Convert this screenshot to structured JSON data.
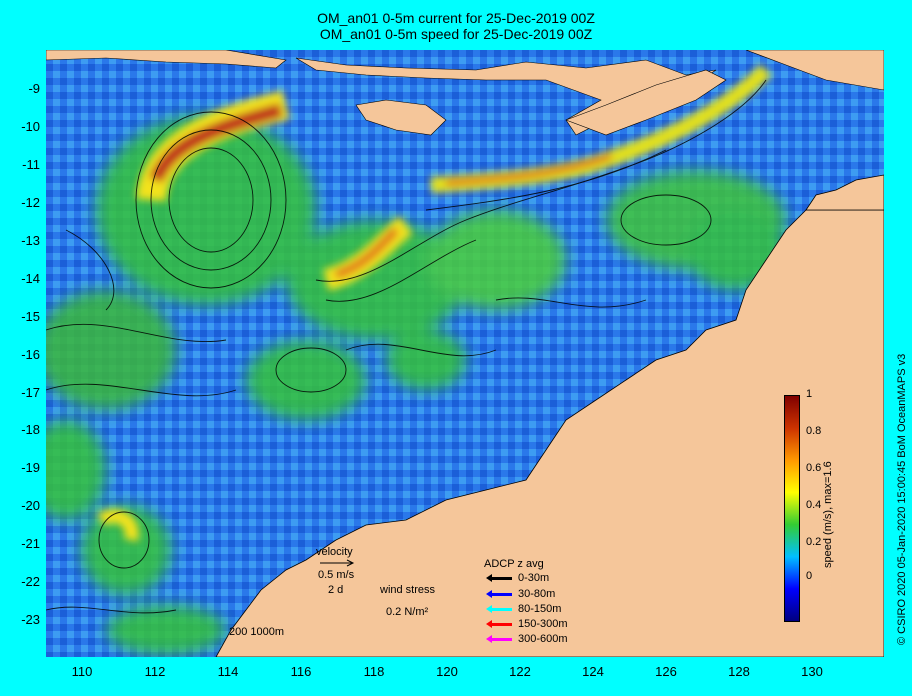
{
  "title": {
    "line1": "OM_an01 0-5m current for 25-Dec-2019 00Z",
    "line2": "OM_an01 0-5m speed for 25-Dec-2019 00Z"
  },
  "axes": {
    "x_ticks": [
      "110",
      "112",
      "114",
      "116",
      "118",
      "120",
      "122",
      "124",
      "126",
      "128",
      "130"
    ],
    "y_ticks": [
      "-9",
      "-10",
      "-11",
      "-12",
      "-13",
      "-14",
      "-15",
      "-16",
      "-17",
      "-18",
      "-19",
      "-20",
      "-21",
      "-22",
      "-23"
    ]
  },
  "colorbar": {
    "label": "speed (m/s),  max=1.6",
    "ticks": [
      "1",
      "0.8",
      "0.6",
      "0.4",
      "0.2",
      "0"
    ],
    "colors": [
      "#000080",
      "#0000ff",
      "#00bfff",
      "#33cc33",
      "#ffff00",
      "#ff9900",
      "#cc3300",
      "#800000"
    ]
  },
  "credit": "© CSIRO 2020   05-Jan-2020 15:00:45 BoM OceanMAPS v3",
  "legend": {
    "velocity": "velocity",
    "velocity_scale": "0.5 m/s",
    "time_scale": "2 d",
    "wind_stress": "wind stress",
    "wind_scale": "0.2 N/m²",
    "depth_contours": "200  1000m",
    "adcp_title": "ADCP z avg",
    "adcp": [
      {
        "label": "0-30m",
        "color": "#000000"
      },
      {
        "label": "30-80m",
        "color": "#0000ff"
      },
      {
        "label": "80-150m",
        "color": "#00ffff"
      },
      {
        "label": "150-300m",
        "color": "#ff0000"
      },
      {
        "label": "300-600m",
        "color": "#ff00ff"
      }
    ]
  },
  "colors": {
    "land": "#f5c69a",
    "ocean_low": "#1f6fe6",
    "ocean_mid": "#3aa0f0",
    "eddy_green": "#33c23a",
    "jet_yellow": "#f2e21a",
    "jet_red": "#b22a10"
  }
}
